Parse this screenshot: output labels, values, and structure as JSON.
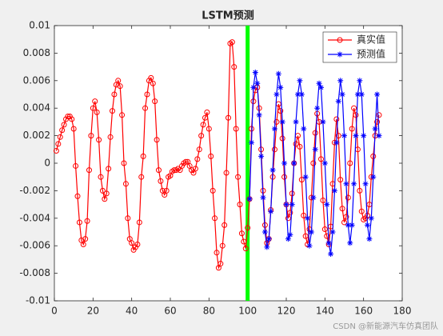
{
  "chart_data": {
    "type": "line",
    "title": "LSTM预测",
    "xlim": [
      0,
      180
    ],
    "xticks": [
      0,
      20,
      40,
      60,
      80,
      100,
      120,
      140,
      160,
      180
    ],
    "ylim": [
      -0.01,
      0.01
    ],
    "yticks": [
      -0.01,
      -0.008,
      -0.006,
      -0.004,
      -0.002,
      0,
      0.002,
      0.004,
      0.006,
      0.008,
      0.01
    ],
    "legend": "northeast",
    "vline": {
      "x": 100,
      "color": "#00ff00"
    },
    "watermark": "CSDN @新能源汽车仿真团队",
    "series": [
      {
        "name": "真实值",
        "color": "#ff0000",
        "marker": "circle",
        "x": [
          1,
          2,
          3,
          4,
          5,
          6,
          7,
          8,
          9,
          10,
          11,
          12,
          13,
          14,
          15,
          16,
          17,
          18,
          19,
          20,
          21,
          22,
          23,
          24,
          25,
          26,
          27,
          28,
          29,
          30,
          31,
          32,
          33,
          34,
          35,
          36,
          37,
          38,
          39,
          40,
          41,
          42,
          43,
          44,
          45,
          46,
          47,
          48,
          49,
          50,
          51,
          52,
          53,
          54,
          55,
          56,
          57,
          58,
          59,
          60,
          61,
          62,
          63,
          64,
          65,
          66,
          67,
          68,
          69,
          70,
          71,
          72,
          73,
          74,
          75,
          76,
          77,
          78,
          79,
          80,
          81,
          82,
          83,
          84,
          85,
          86,
          87,
          88,
          89,
          90,
          91,
          92,
          93,
          94,
          95,
          96,
          97,
          98,
          99,
          100,
          101,
          102,
          103,
          104,
          105,
          106,
          107,
          108,
          109,
          110,
          111,
          112,
          113,
          114,
          115,
          116,
          117,
          118,
          119,
          120,
          121,
          122,
          123,
          124,
          125,
          126,
          127,
          128,
          129,
          130,
          131,
          132,
          133,
          134,
          135,
          136,
          137,
          138,
          139,
          140,
          141,
          142,
          143,
          144,
          145,
          146,
          147,
          148,
          149,
          150,
          151,
          152,
          153,
          154,
          155,
          156,
          157,
          158,
          159,
          160,
          161,
          162,
          163,
          164,
          165,
          166,
          167,
          168
        ],
        "values": [
          0.0009,
          0.0014,
          0.0019,
          0.0024,
          0.0028,
          0.0032,
          0.0034,
          0.0034,
          0.0032,
          0.0025,
          -0.0002,
          -0.0024,
          -0.0043,
          -0.0056,
          -0.0059,
          -0.0055,
          -0.0042,
          -0.0005,
          0.002,
          0.004,
          0.0045,
          0.0037,
          0.0017,
          -0.001,
          -0.002,
          -0.0026,
          -0.0022,
          -0.0004,
          0.0019,
          0.0038,
          0.005,
          0.0057,
          0.006,
          0.0056,
          0.0035,
          0,
          -0.0015,
          -0.004,
          -0.0055,
          -0.0058,
          -0.0063,
          -0.0061,
          -0.0059,
          -0.0043,
          -0.001,
          0.0005,
          0.004,
          0.005,
          0.006,
          0.0062,
          0.0058,
          0.0045,
          0.0017,
          -0.0005,
          -0.0013,
          -0.002,
          -0.0023,
          -0.002,
          -0.001,
          -0.0009,
          -0.0006,
          -0.0005,
          -0.0005,
          -0.0004,
          -0.0005,
          -0.0002,
          0,
          0.0001,
          0.0001,
          -0.0002,
          -0.0005,
          -0.0007,
          -0.0004,
          0.0003,
          0.001,
          0.002,
          0.0028,
          0.0033,
          0.0037,
          0.0025,
          0.0005,
          -0.002,
          -0.004,
          -0.0065,
          -0.0076,
          -0.0073,
          -0.006,
          -0.0045,
          -0.0007,
          0.0033,
          0.0087,
          0.0088,
          0.007,
          0.0025,
          -0.001,
          -0.003,
          -0.0051,
          -0.0057,
          -0.0062,
          -0.0047,
          -0.0026,
          0.0025,
          0.0045,
          0.0053,
          0.0055,
          0.004,
          0.001,
          -0.002,
          -0.0045,
          -0.0058,
          -0.0055,
          -0.0034,
          -0.001,
          0.001,
          0.003,
          0.0043,
          0.0038,
          0.0018,
          -0.001,
          -0.003,
          -0.004,
          -0.0036,
          -0.0022,
          0,
          0.0014,
          0.002,
          0.0012,
          -0.0012,
          -0.0038,
          -0.0053,
          -0.0059,
          -0.0048,
          -0.0025,
          0,
          0.0022,
          0.0036,
          0.003,
          0.0003,
          -0.0027,
          -0.0048,
          -0.0053,
          -0.0059,
          -0.0046,
          -0.0015,
          0.0015,
          0.0032,
          0.002,
          -0.0012,
          -0.0033,
          -0.0043,
          -0.0039,
          -0.0025,
          0,
          0.0025,
          0.004,
          0.0035,
          0.001,
          -0.002,
          -0.0035,
          -0.0041,
          -0.004,
          -0.0038,
          -0.003,
          -0.001,
          0.0005,
          0.002,
          0.003,
          0.0035
        ]
      },
      {
        "name": "预测值",
        "color": "#0000ff",
        "marker": "asterisk",
        "x": [
          101,
          102,
          103,
          104,
          105,
          106,
          107,
          108,
          109,
          110,
          111,
          112,
          113,
          114,
          115,
          116,
          117,
          118,
          119,
          120,
          121,
          122,
          123,
          124,
          125,
          126,
          127,
          128,
          129,
          130,
          131,
          132,
          133,
          134,
          135,
          136,
          137,
          138,
          139,
          140,
          141,
          142,
          143,
          144,
          145,
          146,
          147,
          148,
          149,
          150,
          151,
          152,
          153,
          154,
          155,
          156,
          157,
          158,
          159,
          160,
          161,
          162,
          163,
          164,
          165,
          166,
          167,
          168
        ],
        "values": [
          -0.0026,
          0.0015,
          0.0055,
          0.0066,
          0.0058,
          0.0035,
          0.0005,
          -0.0025,
          -0.005,
          -0.0061,
          -0.0055,
          -0.0035,
          -0.0005,
          0.0025,
          0.005,
          0.0065,
          0.0055,
          0.003,
          0,
          -0.003,
          -0.0055,
          -0.0052,
          -0.003,
          0,
          0.003,
          0.005,
          0.006,
          0.005,
          0.0025,
          -0.001,
          -0.004,
          -0.006,
          -0.005,
          -0.0025,
          0.001,
          0.004,
          0.0058,
          0.0055,
          0.003,
          0,
          -0.003,
          -0.0058,
          -0.0066,
          -0.005,
          -0.002,
          0.0015,
          0.0045,
          0.006,
          0.005,
          0.002,
          -0.0015,
          -0.0045,
          -0.0058,
          -0.0045,
          -0.0015,
          0.002,
          0.005,
          0.006,
          0.005,
          0.002,
          -0.0015,
          -0.0045,
          -0.0055,
          -0.004,
          -0.001,
          0.0025,
          0.005,
          0.002
        ]
      }
    ]
  }
}
